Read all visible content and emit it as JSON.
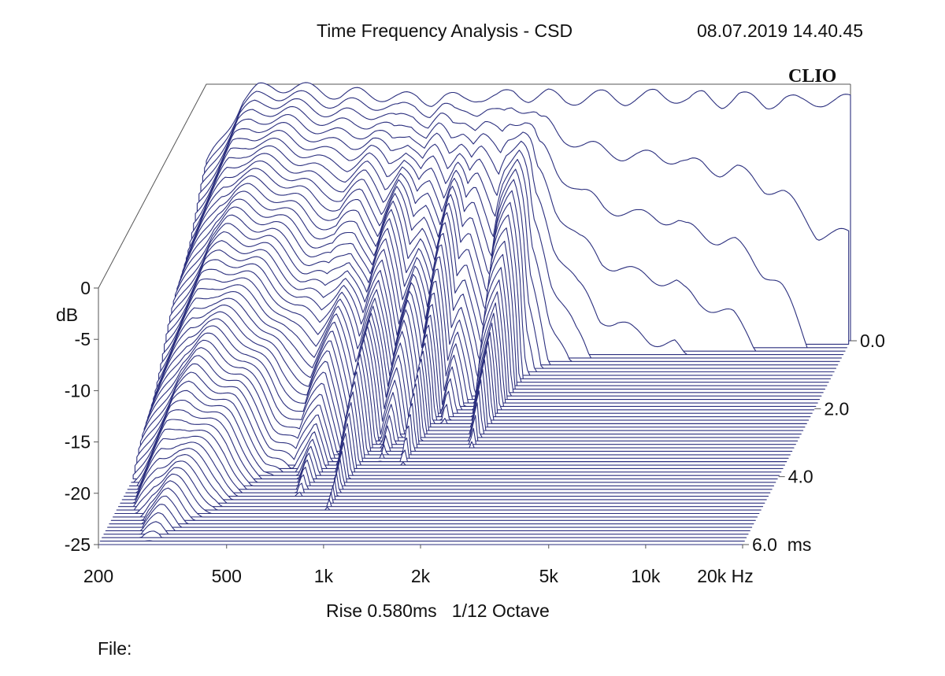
{
  "header": {
    "title": "Time Frequency Analysis - CSD",
    "timestamp": "08.07.2019 14.40.45",
    "brand": "CLIO"
  },
  "footer": {
    "settings": "Rise 0.580ms   1/12 Octave",
    "file_label": "File:"
  },
  "colors": {
    "trace": "#2b2f7e",
    "floor": "#2b2f7e",
    "background": "#ffffff",
    "frame": "#555555"
  },
  "chart_data": {
    "type": "waterfall",
    "title": "Time Frequency Analysis - CSD",
    "x_axis": {
      "scale": "log",
      "range_hz": [
        200,
        20000
      ],
      "ticks": [
        {
          "value": 200,
          "label": "200"
        },
        {
          "value": 500,
          "label": "500"
        },
        {
          "value": 1000,
          "label": "1k"
        },
        {
          "value": 2000,
          "label": "2k"
        },
        {
          "value": 5000,
          "label": "5k"
        },
        {
          "value": 10000,
          "label": "10k"
        },
        {
          "value": 20000,
          "label": "20k Hz"
        }
      ]
    },
    "y_axis": {
      "label": "dB",
      "range": [
        -25,
        0
      ],
      "ticks": [
        {
          "value": 0,
          "label": "0"
        },
        {
          "value": -5,
          "label": "-5"
        },
        {
          "value": -10,
          "label": "-10"
        },
        {
          "value": -15,
          "label": "-15"
        },
        {
          "value": -20,
          "label": "-20"
        },
        {
          "value": -25,
          "label": "-25"
        }
      ]
    },
    "z_axis": {
      "unit": "ms",
      "range_ms": [
        0,
        6
      ],
      "ticks": [
        {
          "value": 0,
          "label": "0.0"
        },
        {
          "value": 2,
          "label": "2.0"
        },
        {
          "value": 4,
          "label": "4.0"
        },
        {
          "value": 6,
          "label": "6.0  ms"
        }
      ]
    },
    "slice_count": 60,
    "frequency_response_db": {
      "freq_hz": [
        200,
        230,
        260,
        290,
        320,
        380,
        450,
        520,
        600,
        700,
        800,
        900,
        1000,
        1100,
        1250,
        1400,
        1600,
        1800,
        2000,
        2300,
        2600,
        3000,
        3500,
        4000,
        4500,
        5000,
        5600,
        6300,
        7000,
        8000,
        9000,
        10000,
        11000,
        12500,
        14000,
        16000,
        18000,
        20000
      ],
      "level_db": [
        -8.0,
        -4.5,
        -1.5,
        -0.5,
        -0.2,
        -0.3,
        -0.6,
        -1.0,
        -0.9,
        -1.1,
        -1.4,
        -1.2,
        -1.6,
        -1.3,
        -1.5,
        -1.1,
        -1.4,
        -0.8,
        -1.2,
        -1.0,
        -1.6,
        -1.3,
        -1.1,
        -1.5,
        -1.4,
        -0.9,
        -1.2,
        -1.6,
        -1.1,
        -1.8,
        -1.2,
        -1.5,
        -1.9,
        -1.4,
        -1.8,
        -1.6,
        -1.7,
        -1.5
      ]
    },
    "decay_ms": {
      "freq_hz": [
        200,
        250,
        300,
        400,
        500,
        600,
        700,
        800,
        900,
        1000,
        1100,
        1200,
        1300,
        1400,
        1500,
        1700,
        1800,
        2000,
        2200,
        2500,
        3000,
        3500,
        4000,
        5000,
        6000,
        7000,
        8000,
        10000,
        12000,
        14000,
        16000,
        18000,
        20000
      ],
      "time_to_floor_ms": [
        6.0,
        6.0,
        6.0,
        5.2,
        4.2,
        3.8,
        4.8,
        3.4,
        5.2,
        3.0,
        3.8,
        2.6,
        4.1,
        2.2,
        2.6,
        1.6,
        2.4,
        3.4,
        1.2,
        0.8,
        0.6,
        0.5,
        0.5,
        0.45,
        0.45,
        0.4,
        0.4,
        0.35,
        0.3,
        0.25,
        0.2,
        0.2,
        0.2
      ]
    }
  }
}
